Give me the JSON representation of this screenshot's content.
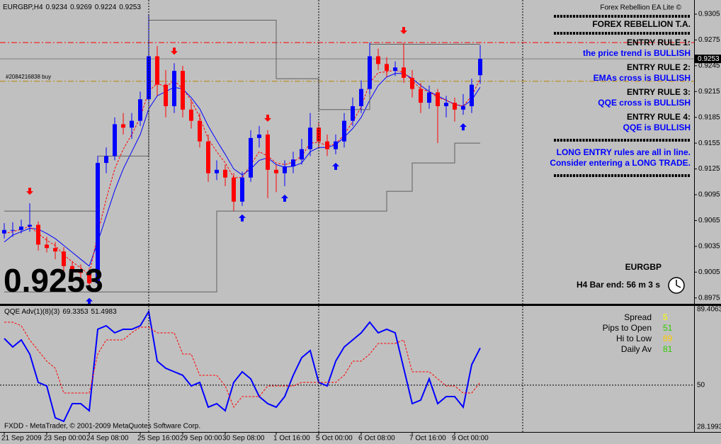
{
  "chart_data": [
    {
      "type": "candlestick",
      "symbol": "EURGBP,H4",
      "categories": [
        "21 Sep 2009",
        null,
        null,
        null,
        null,
        "23 Sep 00:00",
        null,
        null,
        null,
        null,
        "24 Sep 08:00",
        null,
        null,
        null,
        null,
        null,
        "25 Sep 16:00",
        null,
        null,
        null,
        null,
        "29 Sep 00:00",
        null,
        null,
        null,
        null,
        "30 Sep 08:00",
        null,
        null,
        null,
        null,
        null,
        "1 Oct 16:00",
        null,
        null,
        null,
        null,
        "5 Oct 00:00",
        null,
        null,
        null,
        null,
        "6 Oct 08:00",
        null,
        null,
        null,
        null,
        null,
        "7 Oct 16:00",
        null,
        null,
        null,
        null,
        "9 Oct 00:00",
        null,
        null,
        null
      ],
      "open": [
        0.905,
        0.9054,
        0.9054,
        0.9058,
        0.906,
        0.9037,
        0.9033,
        0.9029,
        0.9012,
        0.9008,
        0.9004,
        0.8992,
        0.9132,
        0.914,
        0.9177,
        0.9173,
        0.9181,
        0.9206,
        0.9256,
        0.9223,
        0.9198,
        0.9239,
        0.9194,
        0.9181,
        0.9157,
        0.912,
        0.9124,
        0.9115,
        0.9087,
        0.9115,
        0.9161,
        0.9165,
        0.9124,
        0.912,
        0.9128,
        0.9136,
        0.9148,
        0.9173,
        0.9157,
        0.9148,
        0.9157,
        0.9181,
        0.9198,
        0.9218,
        0.9256,
        0.9247,
        0.9239,
        0.9243,
        0.9231,
        0.9218,
        0.9202,
        0.9214,
        0.9198,
        0.9202,
        0.9194,
        0.9198,
        0.9234
      ],
      "high": [
        0.9062,
        0.9063,
        0.9066,
        0.9085,
        0.9064,
        0.9046,
        0.904,
        0.9034,
        0.9018,
        0.9014,
        0.901,
        0.914,
        0.915,
        0.9185,
        0.919,
        0.919,
        0.9215,
        0.9305,
        0.9268,
        0.924,
        0.9248,
        0.9245,
        0.9205,
        0.919,
        0.9165,
        0.9135,
        0.913,
        0.912,
        0.9122,
        0.917,
        0.9175,
        0.917,
        0.913,
        0.9135,
        0.9145,
        0.916,
        0.919,
        0.918,
        0.9165,
        0.9165,
        0.919,
        0.9208,
        0.9228,
        0.9272,
        0.9265,
        0.9255,
        0.925,
        0.9272,
        0.924,
        0.9225,
        0.9222,
        0.9218,
        0.921,
        0.9208,
        0.9212,
        0.923,
        0.9269
      ],
      "low": [
        0.9044,
        0.9046,
        0.905,
        0.9052,
        0.903,
        0.9028,
        0.902,
        0.9006,
        0.9,
        0.8996,
        0.8985,
        0.8988,
        0.912,
        0.9135,
        0.9165,
        0.916,
        0.9175,
        0.92,
        0.921,
        0.9185,
        0.919,
        0.9185,
        0.9172,
        0.915,
        0.911,
        0.9112,
        0.9105,
        0.9076,
        0.9082,
        0.911,
        0.915,
        0.9091,
        0.9098,
        0.9105,
        0.912,
        0.913,
        0.914,
        0.915,
        0.914,
        0.9142,
        0.915,
        0.9175,
        0.919,
        0.9212,
        0.924,
        0.9232,
        0.9233,
        0.9225,
        0.9208,
        0.919,
        0.9195,
        0.9155,
        0.9185,
        0.918,
        0.9188,
        0.919,
        0.9224
      ],
      "close": [
        0.9054,
        0.9054,
        0.9058,
        0.906,
        0.9037,
        0.9033,
        0.9029,
        0.9012,
        0.9008,
        0.9004,
        0.8992,
        0.9132,
        0.914,
        0.9177,
        0.9173,
        0.9181,
        0.9206,
        0.9256,
        0.9223,
        0.9198,
        0.9239,
        0.9194,
        0.9181,
        0.9157,
        0.912,
        0.9124,
        0.9115,
        0.9087,
        0.9115,
        0.9161,
        0.9165,
        0.9124,
        0.912,
        0.9128,
        0.9136,
        0.9148,
        0.9173,
        0.9157,
        0.9148,
        0.9157,
        0.9181,
        0.9198,
        0.9218,
        0.9256,
        0.9247,
        0.9239,
        0.9243,
        0.9231,
        0.9218,
        0.9202,
        0.9214,
        0.9198,
        0.9202,
        0.9194,
        0.9198,
        0.9223,
        0.9253
      ],
      "up_color": "#0000ff",
      "down_color": "#ff0000",
      "overlays": [
        {
          "color": "#0000ff",
          "style": "solid",
          "values": [
            0.904,
            0.9048,
            0.9052,
            0.9056,
            0.9055,
            0.905,
            0.9044,
            0.9036,
            0.9028,
            0.902,
            0.9012,
            0.904,
            0.907,
            0.91,
            0.9125,
            0.9145,
            0.9165,
            0.9195,
            0.921,
            0.9215,
            0.922,
            0.9218,
            0.9208,
            0.9195,
            0.9175,
            0.9158,
            0.9142,
            0.9125,
            0.9118,
            0.9125,
            0.9135,
            0.9138,
            0.913,
            0.9127,
            0.9128,
            0.9132,
            0.9145,
            0.915,
            0.915,
            0.9153,
            0.9162,
            0.9172,
            0.9185,
            0.9205,
            0.9222,
            0.9232,
            0.9236,
            0.9236,
            0.923,
            0.9222,
            0.9215,
            0.921,
            0.9205,
            0.92,
            0.9198,
            0.9205,
            0.922
          ]
        },
        {
          "color": "#ff0000",
          "style": "dashed",
          "values": [
            0.905,
            0.9052,
            0.9055,
            0.9058,
            0.905,
            0.9042,
            0.9036,
            0.9025,
            0.9017,
            0.901,
            0.9002,
            0.905,
            0.909,
            0.9125,
            0.9148,
            0.9165,
            0.9185,
            0.9215,
            0.9225,
            0.922,
            0.9228,
            0.9218,
            0.9205,
            0.9185,
            0.916,
            0.9145,
            0.9132,
            0.9115,
            0.9115,
            0.913,
            0.9145,
            0.914,
            0.9132,
            0.913,
            0.9133,
            0.914,
            0.9155,
            0.9156,
            0.9152,
            0.9154,
            0.9165,
            0.918,
            0.9197,
            0.9225,
            0.9237,
            0.9238,
            0.924,
            0.9237,
            0.9228,
            0.9218,
            0.9215,
            0.9208,
            0.9205,
            0.92,
            0.9198,
            0.921,
            0.923
          ]
        },
        {
          "color": "#606060",
          "style": "step",
          "values": [
            0.9076,
            0.9076,
            0.9076,
            0.9076,
            0.9076,
            0.9076,
            0.9076,
            0.9076,
            0.9076,
            0.9076,
            0.9076,
            0.914,
            0.914,
            0.914,
            0.914,
            0.914,
            0.914,
            0.9298,
            0.9298,
            0.9298,
            0.9298,
            0.9298,
            0.9298,
            0.9298,
            0.9298,
            0.9298,
            0.9298,
            0.9298,
            0.9298,
            0.9298,
            0.9298,
            0.9298,
            0.923,
            0.923,
            0.923,
            0.923,
            0.923,
            0.9194,
            0.9194,
            0.9194,
            0.9194,
            0.9194,
            0.9194,
            0.927,
            0.927,
            0.927,
            0.927,
            0.927,
            0.927,
            0.927,
            0.927,
            0.927,
            0.927,
            0.927,
            0.927,
            0.927,
            0.927
          ]
        },
        {
          "color": "#606060",
          "style": "step",
          "values": [
            0.8982,
            0.8982,
            0.8982,
            0.8982,
            0.8982,
            0.8982,
            0.8982,
            0.8982,
            0.8982,
            0.8982,
            0.8982,
            0.8982,
            0.8982,
            0.8982,
            0.8982,
            0.8982,
            0.8982,
            0.8982,
            0.8982,
            0.8982,
            0.8982,
            0.8982,
            0.8982,
            0.8982,
            0.8982,
            0.9076,
            0.9076,
            0.9076,
            0.9076,
            0.9076,
            0.9076,
            0.9076,
            0.9076,
            0.9076,
            0.9076,
            0.9076,
            0.9076,
            0.9076,
            0.9076,
            0.9076,
            0.9076,
            0.9076,
            0.9076,
            0.9076,
            0.9076,
            0.9099,
            0.9099,
            0.9099,
            0.9132,
            0.9132,
            0.9132,
            0.9132,
            0.9132,
            0.9155,
            0.9155,
            0.9155,
            0.9155
          ]
        }
      ],
      "signals_up": [
        10,
        28,
        33,
        39,
        54
      ],
      "signals_down": [
        3,
        20,
        31,
        47
      ],
      "levels": [
        {
          "value": 0.9272,
          "color": "#ff0000",
          "style": "dashdot"
        },
        {
          "value": 0.9253,
          "color": "#808080",
          "style": "solid"
        },
        {
          "value": 0.9227,
          "color": "#b8860b",
          "style": "dashdot",
          "label": "#2084216838 buy"
        }
      ],
      "ylim": [
        0.8969,
        0.9319
      ],
      "yticks": [
        0.9305,
        0.9275,
        0.9245,
        0.9215,
        0.9185,
        0.9155,
        0.9125,
        0.9095,
        0.9065,
        0.9035,
        0.9005,
        0.8975
      ]
    },
    {
      "type": "line",
      "title": "QQE Adv(1)(8)(3)",
      "series": [
        {
          "color": "#0000ff",
          "style": "solid",
          "values": [
            74.29,
            69.87,
            73.55,
            66.18,
            51.43,
            49.59,
            32.99,
            31.15,
            40.37,
            40.37,
            36.68,
            79.08,
            80.93,
            77.24,
            79.08,
            79.08,
            80.93,
            88.3,
            62.49,
            58.8,
            56.96,
            55.12,
            49.59,
            51.43,
            38.53,
            40.37,
            36.68,
            51.43,
            56.96,
            53.27,
            44.06,
            40.37,
            38.53,
            44.06,
            55.12,
            64.33,
            68.02,
            51.43,
            49.59,
            62.49,
            69.87,
            73.55,
            77.24,
            82.77,
            77.24,
            79.08,
            77.24,
            58.8,
            40.37,
            42.21,
            53.27,
            40.37,
            44.06,
            44.06,
            38.53,
            60.65,
            69.3353
          ]
        },
        {
          "color": "#ff0000",
          "style": "dashed",
          "values": [
            82.77,
            82.77,
            80.93,
            73.55,
            68.02,
            62.49,
            58.8,
            45.9,
            45.9,
            45.9,
            45.9,
            66.18,
            73.55,
            73.55,
            73.55,
            77.24,
            80.19,
            80.19,
            77.24,
            77.24,
            77.24,
            66.18,
            66.18,
            55.12,
            55.12,
            55.12,
            49.59,
            38.53,
            44.06,
            44.06,
            44.06,
            49.59,
            49.59,
            49.59,
            49.59,
            51.43,
            51.43,
            51.43,
            51.43,
            51.43,
            55.12,
            62.49,
            62.49,
            66.18,
            71.71,
            71.71,
            71.71,
            73.55,
            56.96,
            56.96,
            56.96,
            53.27,
            49.59,
            49.59,
            45.9,
            45.9,
            51.4983
          ]
        }
      ],
      "ylim": [
        28.1993,
        89.4063
      ],
      "yticks": [
        89.4063,
        50,
        28.1993
      ]
    }
  ],
  "panel": {
    "brand": "Forex Rebellion EA Lite ©",
    "title": "FOREX REBELLION T.A.",
    "rules": [
      {
        "label": "ENTRY RULE 1:",
        "text": "the price trend is BULLISH"
      },
      {
        "label": "ENTRY RULE 2:",
        "text": "EMAs cross is BULLISH"
      },
      {
        "label": "ENTRY RULE 3:",
        "text": "QQE cross is BULLISH"
      },
      {
        "label": "ENTRY RULE 4:",
        "text": "QQE is BULLISH"
      }
    ],
    "conclusion": [
      "LONG ENTRY rules are all in line.",
      "Consider entering a LONG TRADE."
    ],
    "symbol": "EURGBP",
    "bar_end": "H4 Bar end: 56 m 3 s"
  },
  "stats": [
    {
      "label": "Spread",
      "value": 5,
      "color": "#ffff00"
    },
    {
      "label": "Pips to Open",
      "value": 51,
      "color": "#33cc00"
    },
    {
      "label": "Hi to Low",
      "value": 89,
      "color": "#ffcc00"
    },
    {
      "label": "Daily Av",
      "value": 81,
      "color": "#33cc00"
    }
  ],
  "footer": "FXDD - MetaTrader, © 2001-2009 MetaQuotes Software Corp."
}
